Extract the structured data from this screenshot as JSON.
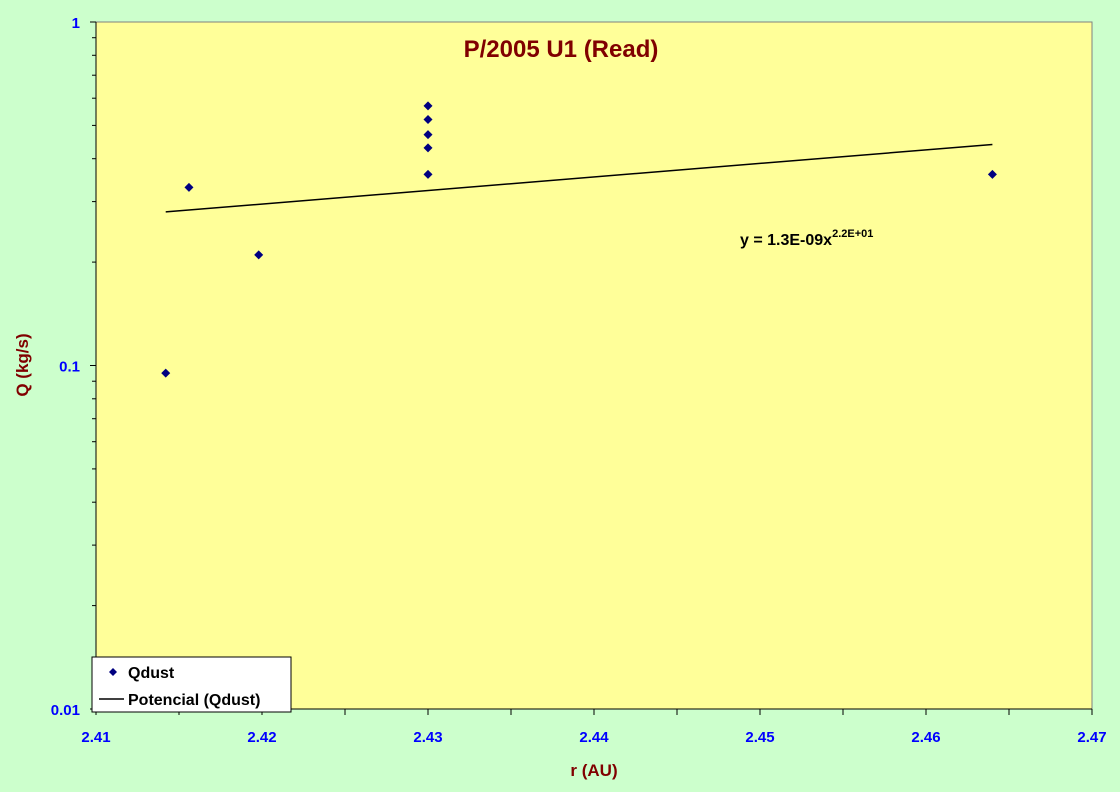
{
  "colors": {
    "background": "#ccffcc",
    "plot_area": "#ffff99",
    "title": "#800000",
    "tick_labels": "#0000ff",
    "marker": "#000080",
    "trendline": "#000000"
  },
  "chart_data": {
    "type": "scatter",
    "title": "P/2005 U1 (Read)",
    "xlabel": "r (AU)",
    "ylabel": "Q (kg/s)",
    "xlim": [
      2.41,
      2.47
    ],
    "ylim": [
      0.01,
      1
    ],
    "yscale": "log",
    "grid": false,
    "legend_position": "bottom-left",
    "x_tick_labels": [
      "2.41",
      "2.42",
      "2.43",
      "2.44",
      "2.45",
      "2.46",
      "2.47"
    ],
    "y_tick_labels": [
      "0.01",
      "0.1",
      "1"
    ],
    "series": [
      {
        "name": "Qdust",
        "marker": "diamond",
        "points": [
          {
            "x": 2.4142,
            "y": 0.095
          },
          {
            "x": 2.4156,
            "y": 0.33
          },
          {
            "x": 2.4198,
            "y": 0.21
          },
          {
            "x": 2.43,
            "y": 0.36
          },
          {
            "x": 2.43,
            "y": 0.43
          },
          {
            "x": 2.43,
            "y": 0.47
          },
          {
            "x": 2.43,
            "y": 0.52
          },
          {
            "x": 2.43,
            "y": 0.57
          },
          {
            "x": 2.464,
            "y": 0.36
          }
        ]
      }
    ],
    "trendline": {
      "name": "Potencial (Qdust)",
      "type": "power",
      "x_range": [
        2.4142,
        2.464
      ],
      "y_values": [
        0.28,
        0.44
      ],
      "equation": {
        "base": "y = 1.3E-09x",
        "exponent": "2.2E+01"
      }
    }
  }
}
